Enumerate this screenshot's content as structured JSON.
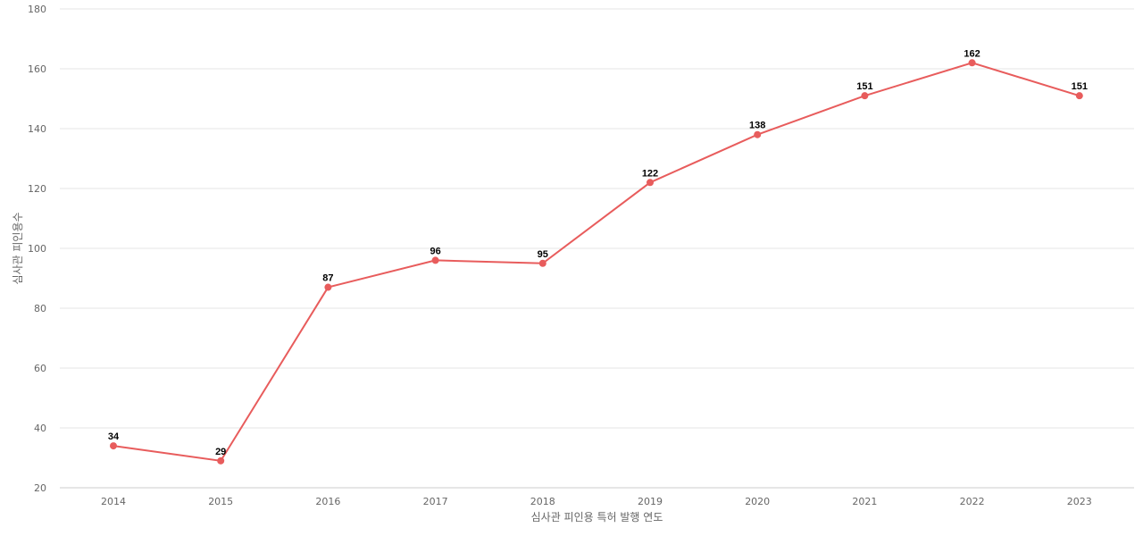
{
  "chart_data": {
    "type": "line",
    "x": [
      "2014",
      "2015",
      "2016",
      "2017",
      "2018",
      "2019",
      "2020",
      "2021",
      "2022",
      "2023"
    ],
    "series": [
      {
        "values": [
          34,
          29,
          87,
          96,
          95,
          122,
          138,
          151,
          162,
          151
        ],
        "color": "#e85c5c"
      }
    ],
    "xlabel": "심사관 피인용 특허 발행 연도",
    "ylabel": "심사관 피인용수",
    "ylim": [
      20,
      180
    ],
    "yticks": [
      20,
      40,
      60,
      80,
      100,
      120,
      140,
      160,
      180
    ],
    "grid": true,
    "data_labels": true
  }
}
